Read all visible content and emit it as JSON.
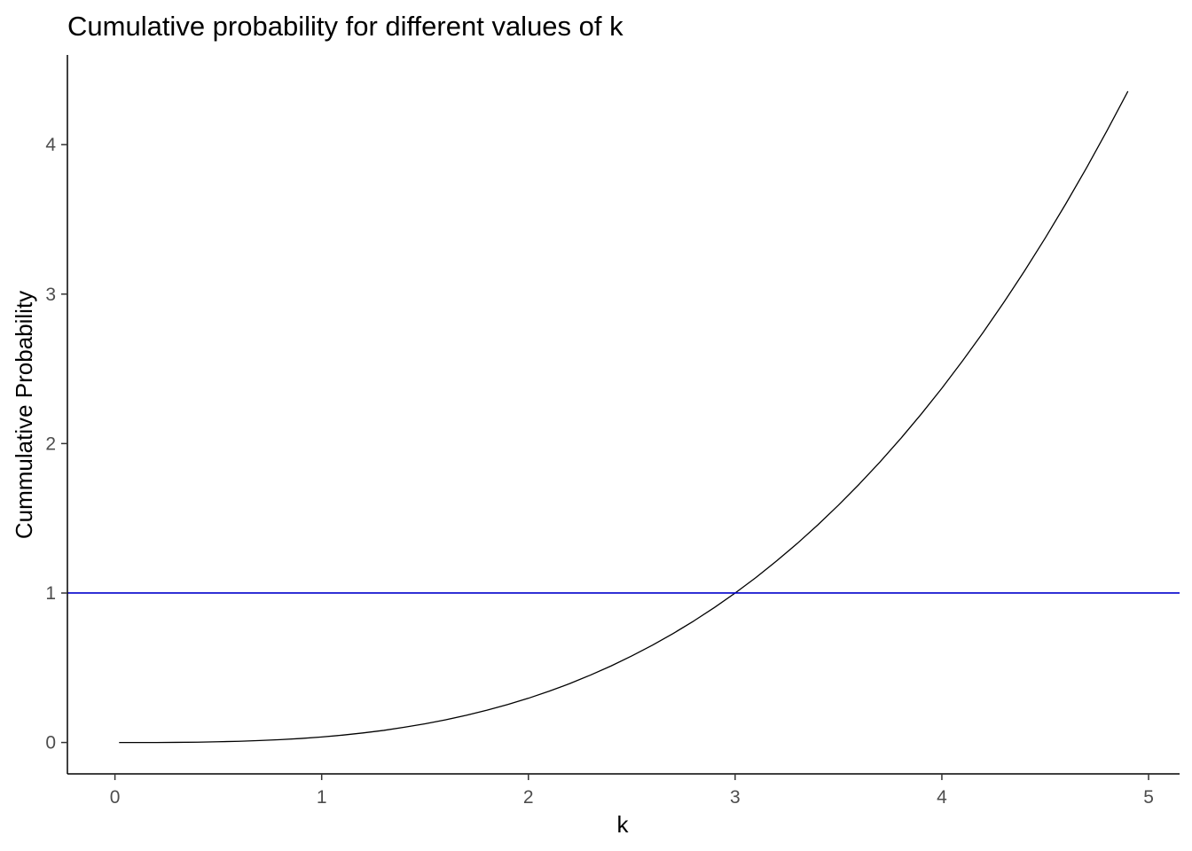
{
  "chart_data": {
    "type": "line",
    "title": "Cumulative probability for different values of k",
    "xlabel": "k",
    "ylabel": "Cummulative Probability",
    "xlim": [
      -0.23,
      5.15
    ],
    "ylim": [
      -0.21,
      4.6
    ],
    "x_ticks": [
      0,
      1,
      2,
      3,
      4,
      5
    ],
    "y_ticks": [
      0,
      1,
      2,
      3,
      4
    ],
    "x_tick_labels": [
      "0",
      "1",
      "2",
      "3",
      "4",
      "5"
    ],
    "y_tick_labels": [
      "0",
      "1",
      "2",
      "3",
      "4"
    ],
    "grid": false,
    "series": [
      {
        "color": "#000000",
        "x": [
          0.02,
          0.1,
          0.2,
          0.3,
          0.4,
          0.5,
          0.6,
          0.7,
          0.8,
          0.9,
          1.0,
          1.1,
          1.2,
          1.3,
          1.4,
          1.5,
          1.6,
          1.7,
          1.8,
          1.9,
          2.0,
          2.1,
          2.2,
          2.3,
          2.4,
          2.5,
          2.6,
          2.7,
          2.8,
          2.9,
          3.0,
          3.1,
          3.2,
          3.3,
          3.4,
          3.5,
          3.6,
          3.7,
          3.8,
          3.9,
          4.0,
          4.1,
          4.2,
          4.3,
          4.4,
          4.5,
          4.6,
          4.7,
          4.8,
          4.9
        ],
        "y": [
          0.0,
          0.0,
          0.0,
          0.001,
          0.002,
          0.005,
          0.008,
          0.013,
          0.019,
          0.027,
          0.037,
          0.049,
          0.064,
          0.081,
          0.102,
          0.125,
          0.152,
          0.182,
          0.216,
          0.254,
          0.296,
          0.343,
          0.394,
          0.451,
          0.512,
          0.579,
          0.651,
          0.729,
          0.813,
          0.903,
          1.0,
          1.103,
          1.214,
          1.331,
          1.456,
          1.588,
          1.728,
          1.876,
          2.032,
          2.197,
          2.37,
          2.553,
          2.744,
          2.945,
          3.155,
          3.375,
          3.605,
          3.845,
          4.096,
          4.357
        ]
      }
    ],
    "hlines": [
      {
        "y": 1,
        "color": "#0000cc"
      }
    ]
  }
}
